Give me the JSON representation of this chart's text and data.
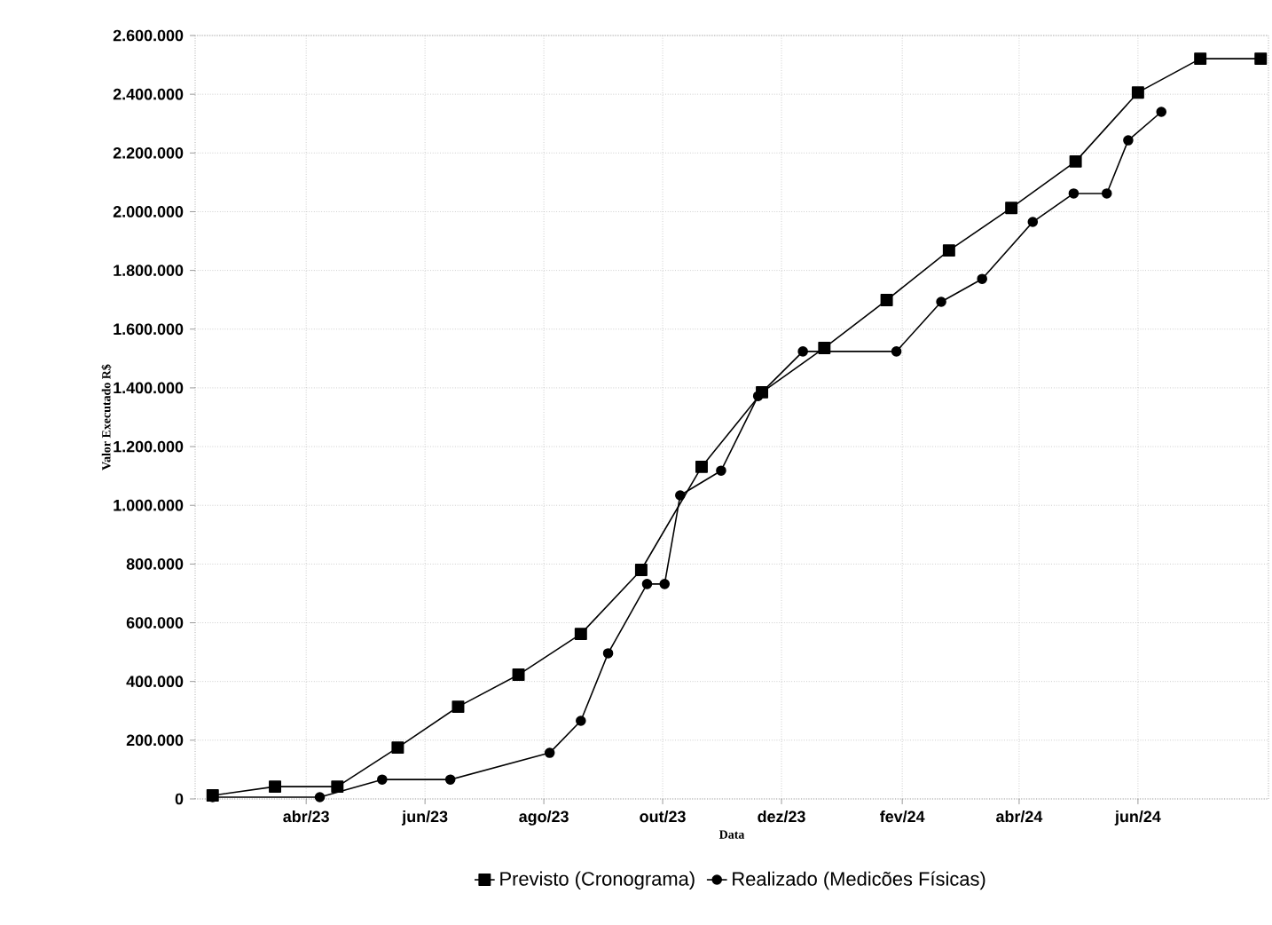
{
  "chart_data": {
    "type": "line",
    "xlabel": "Data",
    "ylabel": "Valor Executado R$",
    "xlim": [
      "2023-02-03",
      "2024-08-07"
    ],
    "xticks": [
      {
        "value": "2023-04-01",
        "label": "abr/23"
      },
      {
        "value": "2023-06-01",
        "label": "jun/23"
      },
      {
        "value": "2023-08-01",
        "label": "ago/23"
      },
      {
        "value": "2023-10-01",
        "label": "out/23"
      },
      {
        "value": "2023-12-01",
        "label": "dez/23"
      },
      {
        "value": "2024-02-01",
        "label": "fev/24"
      },
      {
        "value": "2024-04-01",
        "label": "abr/24"
      },
      {
        "value": "2024-06-01",
        "label": "jun/24"
      }
    ],
    "ylim": [
      0,
      2600000
    ],
    "yticks": [
      0,
      {
        "value": 200000,
        "label": "200.000"
      },
      {
        "value": 400000,
        "label": "400.000"
      },
      {
        "value": 600000,
        "label": "600.000"
      },
      {
        "value": 800000,
        "label": "800.000"
      },
      {
        "value": 1000000,
        "label": "1.000.000"
      },
      {
        "value": 1200000,
        "label": "1.200.000"
      },
      {
        "value": 1400000,
        "label": "1.400.000"
      },
      {
        "value": 1600000,
        "label": "1.600.000"
      },
      {
        "value": 1800000,
        "label": "1.800.000"
      },
      {
        "value": 2000000,
        "label": "2.000.000"
      },
      {
        "value": 2200000,
        "label": "2.200.000"
      },
      {
        "value": 2400000,
        "label": "2.400.000"
      },
      {
        "value": 2600000,
        "label": "2.600.000"
      }
    ],
    "grid": true,
    "legend": "bottom",
    "line_style": "solid",
    "series": [
      {
        "name": "Previsto (Cronograma)",
        "color": "#000000",
        "marker": "square",
        "x": [
          "2023-02-12",
          "2023-03-16",
          "2023-04-17",
          "2023-05-18",
          "2023-06-18",
          "2023-07-19",
          "2023-08-20",
          "2023-09-20",
          "2023-10-21",
          "2023-11-21",
          "2023-12-23",
          "2024-01-24",
          "2024-02-25",
          "2024-03-28",
          "2024-04-30",
          "2024-06-01",
          "2024-07-03",
          "2024-08-03"
        ],
        "values": [
          12000,
          42000,
          42000,
          175000,
          314000,
          423000,
          562000,
          780000,
          1131000,
          1385000,
          1536000,
          1699000,
          1868000,
          2013000,
          2171000,
          2406000,
          2521000,
          2521000
        ]
      },
      {
        "name": "Realizado (Medicões Físicas)",
        "color": "#000000",
        "marker": "circle",
        "x": [
          "2023-02-12",
          "2023-04-08",
          "2023-05-10",
          "2023-06-14",
          "2023-08-04",
          "2023-08-20",
          "2023-09-03",
          "2023-09-23",
          "2023-10-02",
          "2023-10-10",
          "2023-10-31",
          "2023-11-19",
          "2023-12-12",
          "2024-01-29",
          "2024-02-21",
          "2024-03-13",
          "2024-04-08",
          "2024-04-29",
          "2024-05-16",
          "2024-05-27",
          "2024-06-13"
        ],
        "values": [
          6000,
          6000,
          66000,
          66000,
          157000,
          266000,
          496000,
          732000,
          732000,
          1034000,
          1118000,
          1372000,
          1524000,
          1524000,
          1693000,
          1771000,
          1965000,
          2062000,
          2062000,
          2243000,
          2340000
        ]
      }
    ]
  }
}
